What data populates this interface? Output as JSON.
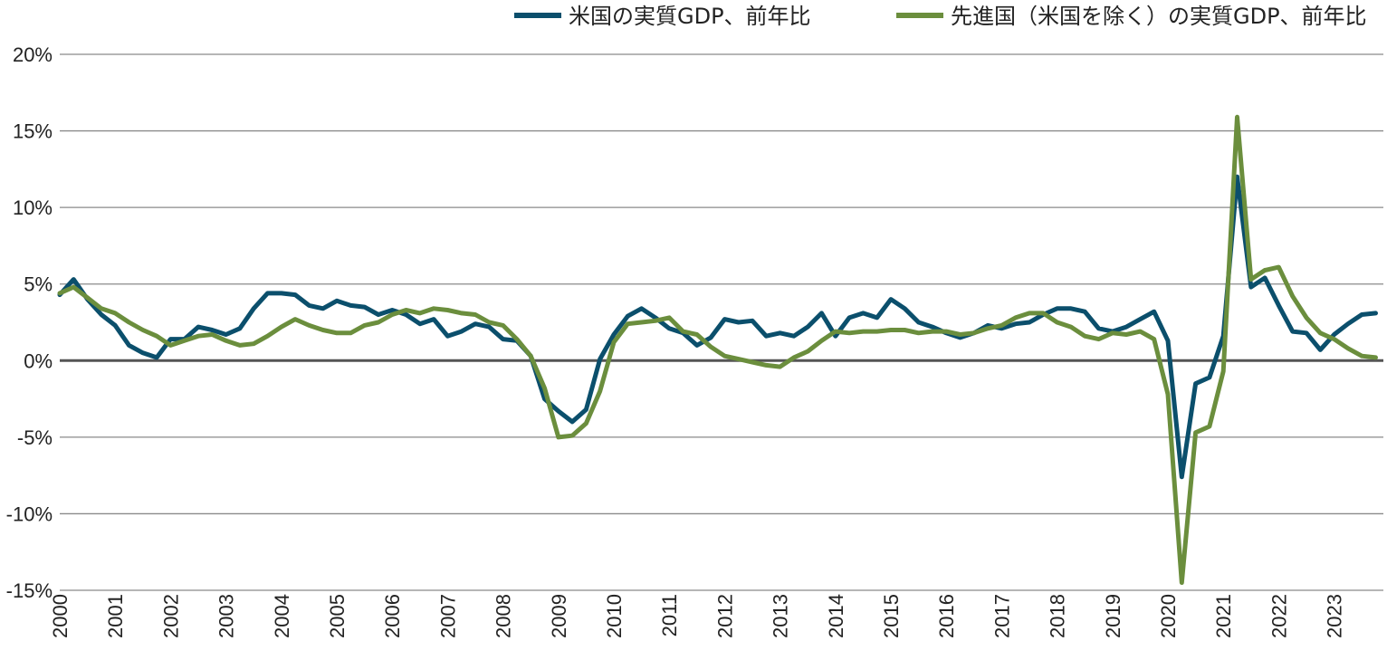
{
  "chart_data": {
    "type": "line",
    "title": "",
    "xlabel": "",
    "ylabel": "",
    "x_unit": "quarter",
    "x_start": "2000-Q1",
    "x_ticks": [
      "2000",
      "2001",
      "2002",
      "2003",
      "2004",
      "2005",
      "2006",
      "2007",
      "2008",
      "2009",
      "2010",
      "2011",
      "2012",
      "2013",
      "2014",
      "2015",
      "2016",
      "2017",
      "2018",
      "2019",
      "2020",
      "2021",
      "2022",
      "2023"
    ],
    "y_ticks": [
      "20%",
      "15%",
      "10%",
      "5%",
      "0%",
      "-5%",
      "-10%",
      "-15%"
    ],
    "ylim": [
      -15,
      20
    ],
    "grid": true,
    "legend_position": "top",
    "series": [
      {
        "name": "米国の実質GDP、前年比",
        "color": "#0b4f6c",
        "values": [
          4.3,
          5.3,
          4.0,
          3.0,
          2.3,
          1.0,
          0.5,
          0.2,
          1.4,
          1.4,
          2.2,
          2.0,
          1.7,
          2.1,
          3.4,
          4.4,
          4.4,
          4.3,
          3.6,
          3.4,
          3.9,
          3.6,
          3.5,
          3.0,
          3.3,
          3.0,
          2.4,
          2.7,
          1.6,
          1.9,
          2.4,
          2.2,
          1.4,
          1.3,
          0.3,
          -2.5,
          -3.3,
          -4.0,
          -3.2,
          0.1,
          1.7,
          2.9,
          3.4,
          2.8,
          2.1,
          1.8,
          1.0,
          1.5,
          2.7,
          2.5,
          2.6,
          1.6,
          1.8,
          1.6,
          2.2,
          3.1,
          1.6,
          2.8,
          3.1,
          2.8,
          4.0,
          3.4,
          2.5,
          2.2,
          1.8,
          1.5,
          1.8,
          2.3,
          2.1,
          2.4,
          2.5,
          3.0,
          3.4,
          3.4,
          3.2,
          2.1,
          1.9,
          2.2,
          2.7,
          3.2,
          1.3,
          -7.6,
          -1.5,
          -1.1,
          1.6,
          12.0,
          4.8,
          5.4,
          3.6,
          1.9,
          1.8,
          0.7,
          1.7,
          2.4,
          3.0,
          3.1
        ]
      },
      {
        "name": "先進国（米国を除く）の実質GDP、前年比",
        "color": "#6b8e3d",
        "values": [
          4.4,
          4.8,
          4.1,
          3.4,
          3.1,
          2.5,
          2.0,
          1.6,
          1.0,
          1.3,
          1.6,
          1.7,
          1.3,
          1.0,
          1.1,
          1.6,
          2.2,
          2.7,
          2.3,
          2.0,
          1.8,
          1.8,
          2.3,
          2.5,
          3.0,
          3.3,
          3.1,
          3.4,
          3.3,
          3.1,
          3.0,
          2.5,
          2.3,
          1.4,
          0.3,
          -1.8,
          -5.0,
          -4.9,
          -4.1,
          -2.0,
          1.2,
          2.4,
          2.5,
          2.6,
          2.8,
          1.9,
          1.7,
          0.9,
          0.3,
          0.1,
          -0.1,
          -0.3,
          -0.4,
          0.2,
          0.6,
          1.3,
          1.9,
          1.8,
          1.9,
          1.9,
          2.0,
          2.0,
          1.8,
          1.9,
          1.9,
          1.7,
          1.8,
          2.1,
          2.3,
          2.8,
          3.1,
          3.1,
          2.5,
          2.2,
          1.6,
          1.4,
          1.8,
          1.7,
          1.9,
          1.4,
          -2.2,
          -14.5,
          -4.7,
          -4.3,
          -0.7,
          15.9,
          5.3,
          5.9,
          6.1,
          4.2,
          2.8,
          1.8,
          1.4,
          0.8,
          0.3,
          0.2
        ]
      }
    ]
  }
}
